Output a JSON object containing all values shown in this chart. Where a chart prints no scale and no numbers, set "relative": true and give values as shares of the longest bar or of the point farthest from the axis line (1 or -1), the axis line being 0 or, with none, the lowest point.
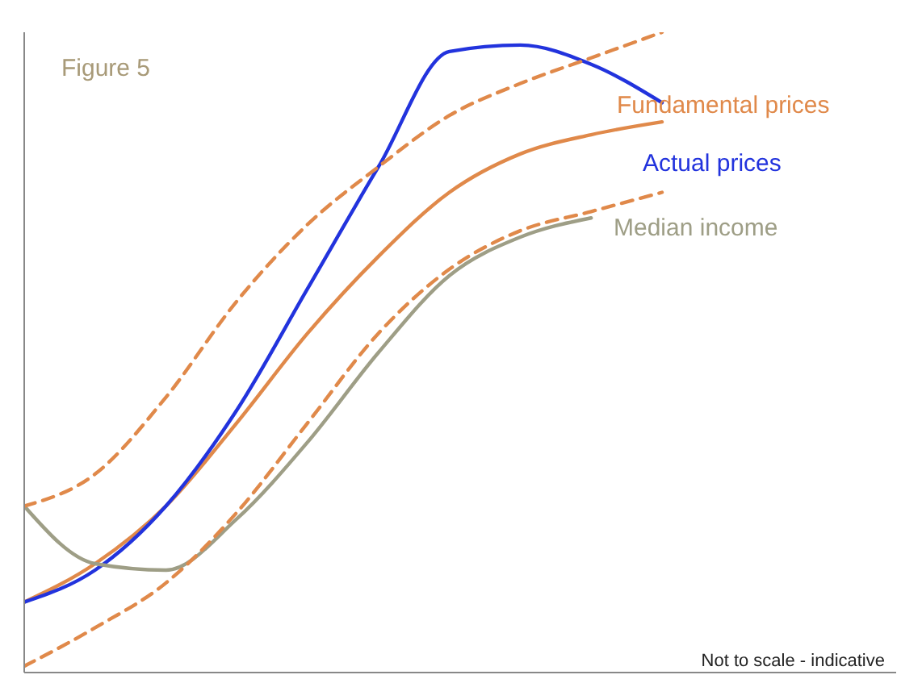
{
  "chart_data": {
    "type": "line",
    "title": "Figure 5",
    "relative": true,
    "categories": [
      null,
      null,
      null,
      null,
      null,
      null,
      null,
      null,
      null,
      null
    ],
    "series": [
      {
        "name": "Fundamental prices",
        "color": "#e0894a",
        "line_style": "solid",
        "values": [
          0.11,
          0.17,
          0.26,
          0.39,
          0.53,
          0.65,
          0.75,
          0.81,
          0.84,
          0.86
        ]
      },
      {
        "name": "Actual prices",
        "color": "#2233dd",
        "line_style": "solid",
        "values": [
          0.11,
          0.16,
          0.26,
          0.41,
          0.6,
          0.79,
          0.97,
          0.98,
          0.95,
          0.89
        ]
      },
      {
        "name": "Median income",
        "color": "#9e9e86",
        "line_style": "solid",
        "values": [
          0.26,
          0.17,
          0.16,
          0.24,
          0.36,
          0.5,
          0.62,
          0.68,
          0.71,
          null
        ]
      },
      {
        "color": "#e0894a",
        "line_style": "dashed",
        "values": [
          0.26,
          0.31,
          0.43,
          0.58,
          0.7,
          0.79,
          0.87,
          0.92,
          0.96,
          1
        ]
      },
      {
        "color": "#e0894a",
        "line_style": "dashed",
        "values": [
          0.01,
          0.07,
          0.14,
          0.25,
          0.39,
          0.53,
          0.63,
          0.69,
          0.72,
          0.75
        ]
      }
    ],
    "annotations": [
      "Not to scale - indicative"
    ],
    "grid": false,
    "legend": false,
    "marker": "none"
  }
}
